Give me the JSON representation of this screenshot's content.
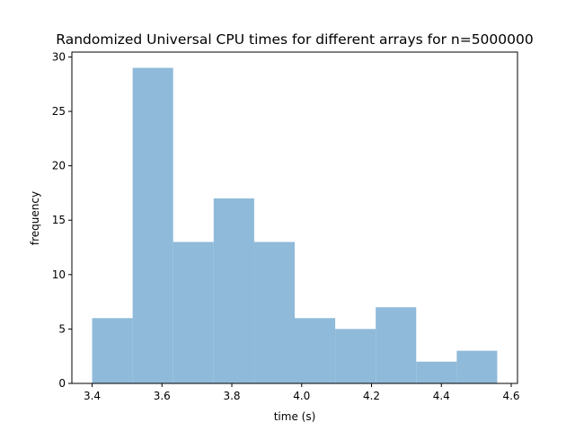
{
  "chart_data": {
    "type": "histogram",
    "title": "Randomized Universal CPU times for different arrays for n=5000000",
    "xlabel": "time (s)",
    "ylabel": "frequency",
    "xlim": [
      3.342,
      4.618
    ],
    "ylim": [
      0,
      30.45
    ],
    "x_ticks": [
      3.4,
      3.6,
      3.8,
      4.0,
      4.2,
      4.4,
      4.6
    ],
    "x_tick_labels": [
      "3.4",
      "3.6",
      "3.8",
      "4.0",
      "4.2",
      "4.4",
      "4.6"
    ],
    "y_ticks": [
      0,
      5,
      10,
      15,
      20,
      25,
      30
    ],
    "y_tick_labels": [
      "0",
      "5",
      "10",
      "15",
      "20",
      "25",
      "30"
    ],
    "bin_edges": [
      3.4,
      3.516,
      3.632,
      3.748,
      3.864,
      3.98,
      4.096,
      4.212,
      4.328,
      4.444,
      4.56
    ],
    "counts": [
      6,
      29,
      13,
      17,
      13,
      6,
      5,
      7,
      2,
      3
    ],
    "bar_color": "#8fbad9",
    "grid": false
  }
}
